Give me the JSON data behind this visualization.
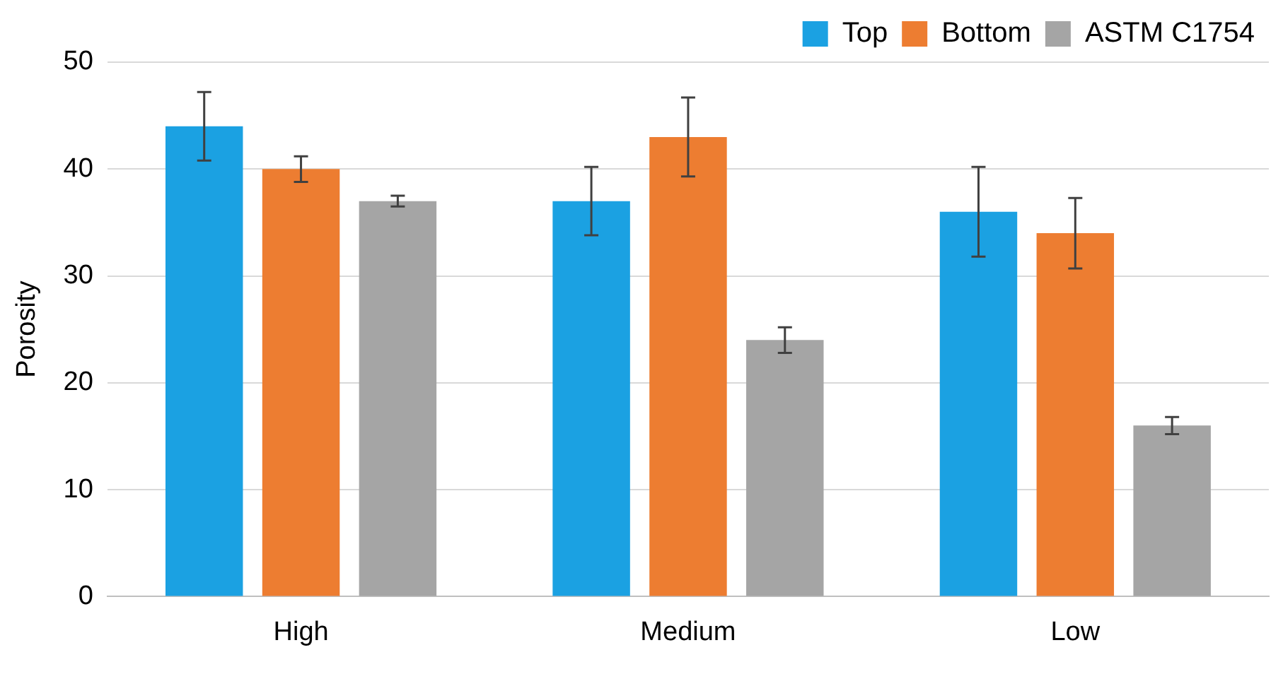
{
  "chart_data": {
    "type": "bar",
    "ylabel": "Porosity",
    "categories": [
      "High",
      "Medium",
      "Low"
    ],
    "series": [
      {
        "name": "Top",
        "color": "#1ba1e2",
        "values": [
          44,
          37,
          36
        ],
        "errors": [
          3.2,
          3.2,
          4.2
        ]
      },
      {
        "name": "Bottom",
        "color": "#ed7d31",
        "values": [
          40,
          43,
          34
        ],
        "errors": [
          1.2,
          3.7,
          3.3
        ]
      },
      {
        "name": "ASTM C1754",
        "color": "#a5a5a5",
        "values": [
          37,
          24,
          16
        ],
        "errors": [
          0.5,
          1.2,
          0.8
        ]
      }
    ],
    "ylim": [
      0,
      50
    ],
    "yticks": [
      0,
      10,
      20,
      30,
      40,
      50
    ],
    "grid": "y",
    "legend": "top right"
  }
}
